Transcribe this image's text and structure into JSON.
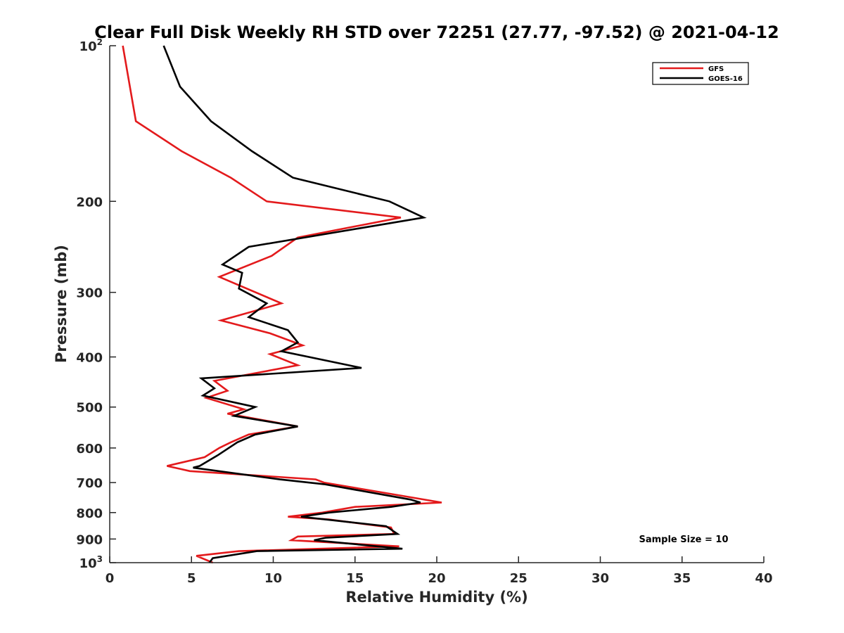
{
  "chart_data": {
    "type": "line",
    "title": "Clear Full Disk Weekly RH STD over 72251 (27.77, -97.52) @ 2021-04-12",
    "xlabel": "Relative Humidity (%)",
    "ylabel": "Pressure (mb)",
    "xlim": [
      0,
      40
    ],
    "ylim": [
      100,
      1000
    ],
    "y_scale": "log",
    "y_reversed": true,
    "grid": false,
    "legend_position": "top-right",
    "x_ticks": [
      0,
      5,
      10,
      15,
      20,
      25,
      30,
      35,
      40
    ],
    "y_ticks": [
      {
        "value": 100,
        "base": "10",
        "exp": "2"
      },
      {
        "value": 200,
        "label": "200"
      },
      {
        "value": 300,
        "label": "300"
      },
      {
        "value": 400,
        "label": "400"
      },
      {
        "value": 500,
        "label": "500"
      },
      {
        "value": 600,
        "label": "600"
      },
      {
        "value": 700,
        "label": "700"
      },
      {
        "value": 800,
        "label": "800"
      },
      {
        "value": 900,
        "label": "900"
      },
      {
        "value": 1000,
        "base": "10",
        "exp": "3"
      }
    ],
    "series": [
      {
        "name": "GFS",
        "color": "#e31a1c",
        "points": [
          [
            0.8,
            100
          ],
          [
            1.6,
            140
          ],
          [
            4.4,
            160
          ],
          [
            7.4,
            180
          ],
          [
            9.6,
            200
          ],
          [
            17.8,
            215
          ],
          [
            11.5,
            235
          ],
          [
            9.9,
            255
          ],
          [
            6.7,
            280
          ],
          [
            10.5,
            315
          ],
          [
            6.8,
            340
          ],
          [
            9.8,
            360
          ],
          [
            11.8,
            380
          ],
          [
            9.8,
            395
          ],
          [
            11.5,
            415
          ],
          [
            6.4,
            445
          ],
          [
            7.2,
            465
          ],
          [
            5.9,
            480
          ],
          [
            8.2,
            505
          ],
          [
            7.2,
            515
          ],
          [
            11.5,
            545
          ],
          [
            8.5,
            565
          ],
          [
            7.4,
            585
          ],
          [
            6.7,
            600
          ],
          [
            5.8,
            625
          ],
          [
            3.5,
            650
          ],
          [
            4.9,
            665
          ],
          [
            12.6,
            690
          ],
          [
            13.1,
            700
          ],
          [
            20.3,
            765
          ],
          [
            15.0,
            780
          ],
          [
            13.0,
            800
          ],
          [
            10.9,
            815
          ],
          [
            13.4,
            825
          ],
          [
            17.2,
            855
          ],
          [
            17.4,
            880
          ],
          [
            11.5,
            890
          ],
          [
            11.1,
            905
          ],
          [
            17.7,
            930
          ],
          [
            7.9,
            950
          ],
          [
            5.3,
            970
          ],
          [
            6.3,
            1000
          ]
        ]
      },
      {
        "name": "GOES-16",
        "color": "#000000",
        "points": [
          [
            3.3,
            100
          ],
          [
            4.3,
            120
          ],
          [
            6.2,
            140
          ],
          [
            8.7,
            160
          ],
          [
            11.2,
            180
          ],
          [
            17.1,
            200
          ],
          [
            19.2,
            215
          ],
          [
            8.5,
            245
          ],
          [
            6.9,
            265
          ],
          [
            8.1,
            275
          ],
          [
            7.9,
            295
          ],
          [
            9.6,
            315
          ],
          [
            8.5,
            335
          ],
          [
            10.9,
            355
          ],
          [
            11.5,
            375
          ],
          [
            10.5,
            390
          ],
          [
            15.4,
            420
          ],
          [
            5.6,
            440
          ],
          [
            6.4,
            460
          ],
          [
            5.7,
            475
          ],
          [
            8.9,
            500
          ],
          [
            7.6,
            520
          ],
          [
            11.5,
            545
          ],
          [
            8.9,
            565
          ],
          [
            7.8,
            585
          ],
          [
            6.6,
            620
          ],
          [
            5.5,
            650
          ],
          [
            5.1,
            655
          ],
          [
            10.4,
            690
          ],
          [
            13.1,
            705
          ],
          [
            18.4,
            755
          ],
          [
            19.0,
            765
          ],
          [
            17.2,
            780
          ],
          [
            13.4,
            800
          ],
          [
            11.7,
            815
          ],
          [
            16.9,
            850
          ],
          [
            17.6,
            880
          ],
          [
            13.2,
            895
          ],
          [
            12.5,
            905
          ],
          [
            17.9,
            940
          ],
          [
            9.0,
            950
          ],
          [
            6.3,
            980
          ],
          [
            6.1,
            1000
          ]
        ]
      }
    ],
    "annotations": [
      "Sample Size = 10"
    ]
  }
}
